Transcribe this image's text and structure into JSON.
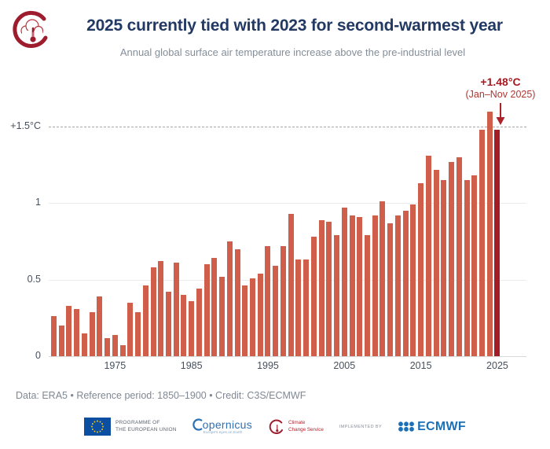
{
  "header": {
    "title": "2025 currently tied with 2023 for second-warmest year",
    "subtitle": "Annual global surface air temperature increase above the pre-industrial level"
  },
  "annotation": {
    "value": "+1.48°C",
    "period": "(Jan–Nov 2025)",
    "arrow_color": "#ad2128"
  },
  "chart_data": {
    "type": "bar",
    "title": "Annual global surface air temperature increase above the pre-industrial level",
    "start_year": 1967,
    "end_year": 2025,
    "years": [
      1967,
      1968,
      1969,
      1970,
      1971,
      1972,
      1973,
      1974,
      1975,
      1976,
      1977,
      1978,
      1979,
      1980,
      1981,
      1982,
      1983,
      1984,
      1985,
      1986,
      1987,
      1988,
      1989,
      1990,
      1991,
      1992,
      1993,
      1994,
      1995,
      1996,
      1997,
      1998,
      1999,
      2000,
      2001,
      2002,
      2003,
      2004,
      2005,
      2006,
      2007,
      2008,
      2009,
      2010,
      2011,
      2012,
      2013,
      2014,
      2015,
      2016,
      2017,
      2018,
      2019,
      2020,
      2021,
      2022,
      2023,
      2024,
      2025
    ],
    "values": [
      0.26,
      0.2,
      0.33,
      0.31,
      0.15,
      0.29,
      0.39,
      0.12,
      0.14,
      0.07,
      0.35,
      0.29,
      0.46,
      0.58,
      0.62,
      0.42,
      0.61,
      0.4,
      0.36,
      0.44,
      0.6,
      0.64,
      0.52,
      0.75,
      0.7,
      0.46,
      0.51,
      0.54,
      0.72,
      0.59,
      0.72,
      0.93,
      0.63,
      0.63,
      0.78,
      0.89,
      0.88,
      0.79,
      0.97,
      0.92,
      0.91,
      0.79,
      0.92,
      1.01,
      0.87,
      0.92,
      0.95,
      0.99,
      1.13,
      1.31,
      1.22,
      1.15,
      1.27,
      1.3,
      1.15,
      1.18,
      1.48,
      1.6,
      1.48
    ],
    "unit": "°C",
    "highlight_year": 2025,
    "highlight_value": 1.48,
    "bar_color": "#cf5f4b",
    "highlight_color": "#a41d26",
    "ylim": [
      0,
      1.65
    ],
    "yticks": [
      {
        "label": "0",
        "value": 0,
        "grid": "solid-dark"
      },
      {
        "label": "0.5",
        "value": 0.5,
        "grid": "solid"
      },
      {
        "label": "1",
        "value": 1,
        "grid": "solid"
      },
      {
        "label": "+1.5°C",
        "value": 1.5,
        "grid": "dashed"
      }
    ],
    "xticks": [
      1975,
      1985,
      1995,
      2005,
      2015,
      2025
    ],
    "grid": "horizontal only, 1.5 level dashed",
    "legend": "none"
  },
  "footer": {
    "source": "Data: ERA5 • Reference period: 1850–1900 • Credit: C3S/ECMWF"
  },
  "logos": {
    "c3s_header_icon": "climate-thermometer-crescent",
    "eu_line1": "PROGRAMME OF",
    "eu_line2": "THE EUROPEAN UNION",
    "copernicus": "Copernicus",
    "copernicus_sub": "Europe's eyes on Earth",
    "c3s_line1": "Climate",
    "c3s_line2": "Change Service",
    "implemented_by": "IMPLEMENTED BY",
    "ecmwf": "ECMWF",
    "eu_blue": "#0b4ea2",
    "eu_star_yellow": "#ffcc00",
    "copernicus_blue": "#2c71b5",
    "ecmwf_blue": "#1b70b8",
    "c3s_red": "#9d1c2e"
  }
}
